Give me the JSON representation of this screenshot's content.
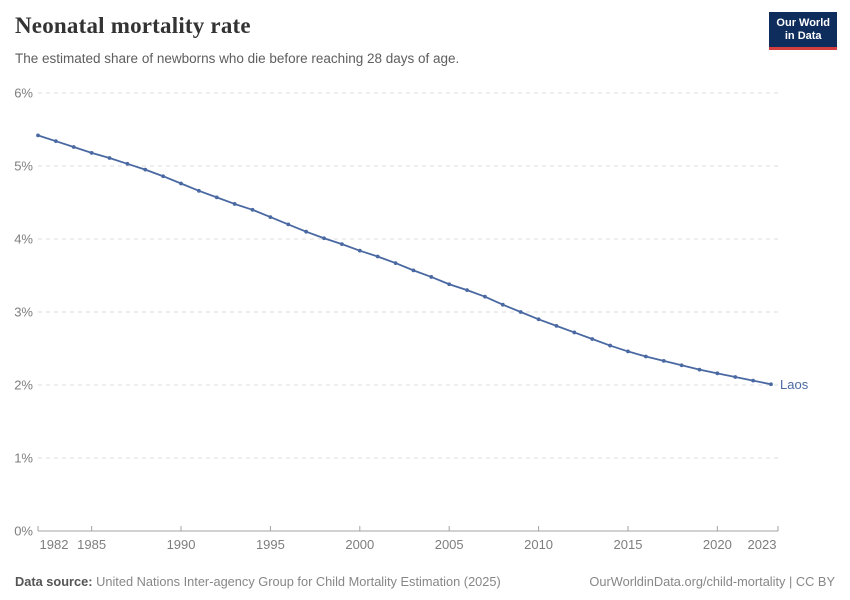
{
  "header": {
    "title": "Neonatal mortality rate",
    "subtitle": "The estimated share of newborns who die before reaching 28 days of age.",
    "logo": {
      "line1": "Our World",
      "line2": "in Data",
      "background_color": "#0f2d5c",
      "accent_color": "#d53e3e"
    }
  },
  "chart_data": {
    "type": "line",
    "title": "Neonatal mortality rate",
    "xlabel": "",
    "ylabel": "",
    "xlim": [
      1982,
      2023
    ],
    "ylim": [
      0,
      6
    ],
    "grid": "horizontal dashed",
    "legend_position": "end-of-line label",
    "x_ticks": [
      "1982",
      "1985",
      "1990",
      "1995",
      "2000",
      "2005",
      "2010",
      "2015",
      "2020",
      "2023"
    ],
    "y_ticks": [
      "0%",
      "1%",
      "2%",
      "3%",
      "4%",
      "5%",
      "6%"
    ],
    "series": [
      {
        "name": "Laos",
        "color": "#4a69a2",
        "x": [
          1982,
          1983,
          1984,
          1985,
          1986,
          1987,
          1988,
          1989,
          1990,
          1991,
          1992,
          1993,
          1994,
          1995,
          1996,
          1997,
          1998,
          1999,
          2000,
          2001,
          2002,
          2003,
          2004,
          2005,
          2006,
          2007,
          2008,
          2009,
          2010,
          2011,
          2012,
          2013,
          2014,
          2015,
          2016,
          2017,
          2018,
          2019,
          2020,
          2021,
          2022,
          2023
        ],
        "values": [
          5.42,
          5.34,
          5.26,
          5.18,
          5.11,
          5.03,
          4.95,
          4.86,
          4.76,
          4.66,
          4.57,
          4.48,
          4.4,
          4.3,
          4.2,
          4.1,
          4.01,
          3.93,
          3.84,
          3.76,
          3.67,
          3.57,
          3.48,
          3.38,
          3.3,
          3.21,
          3.1,
          3.0,
          2.9,
          2.81,
          2.72,
          2.63,
          2.54,
          2.46,
          2.39,
          2.33,
          2.27,
          2.21,
          2.16,
          2.11,
          2.06,
          2.01
        ]
      }
    ]
  },
  "footer": {
    "datasource_label": "Data source:",
    "datasource_text": "United Nations Inter-agency Group for Child Mortality Estimation (2025)",
    "right_text": "OurWorldinData.org/child-mortality | CC BY"
  }
}
